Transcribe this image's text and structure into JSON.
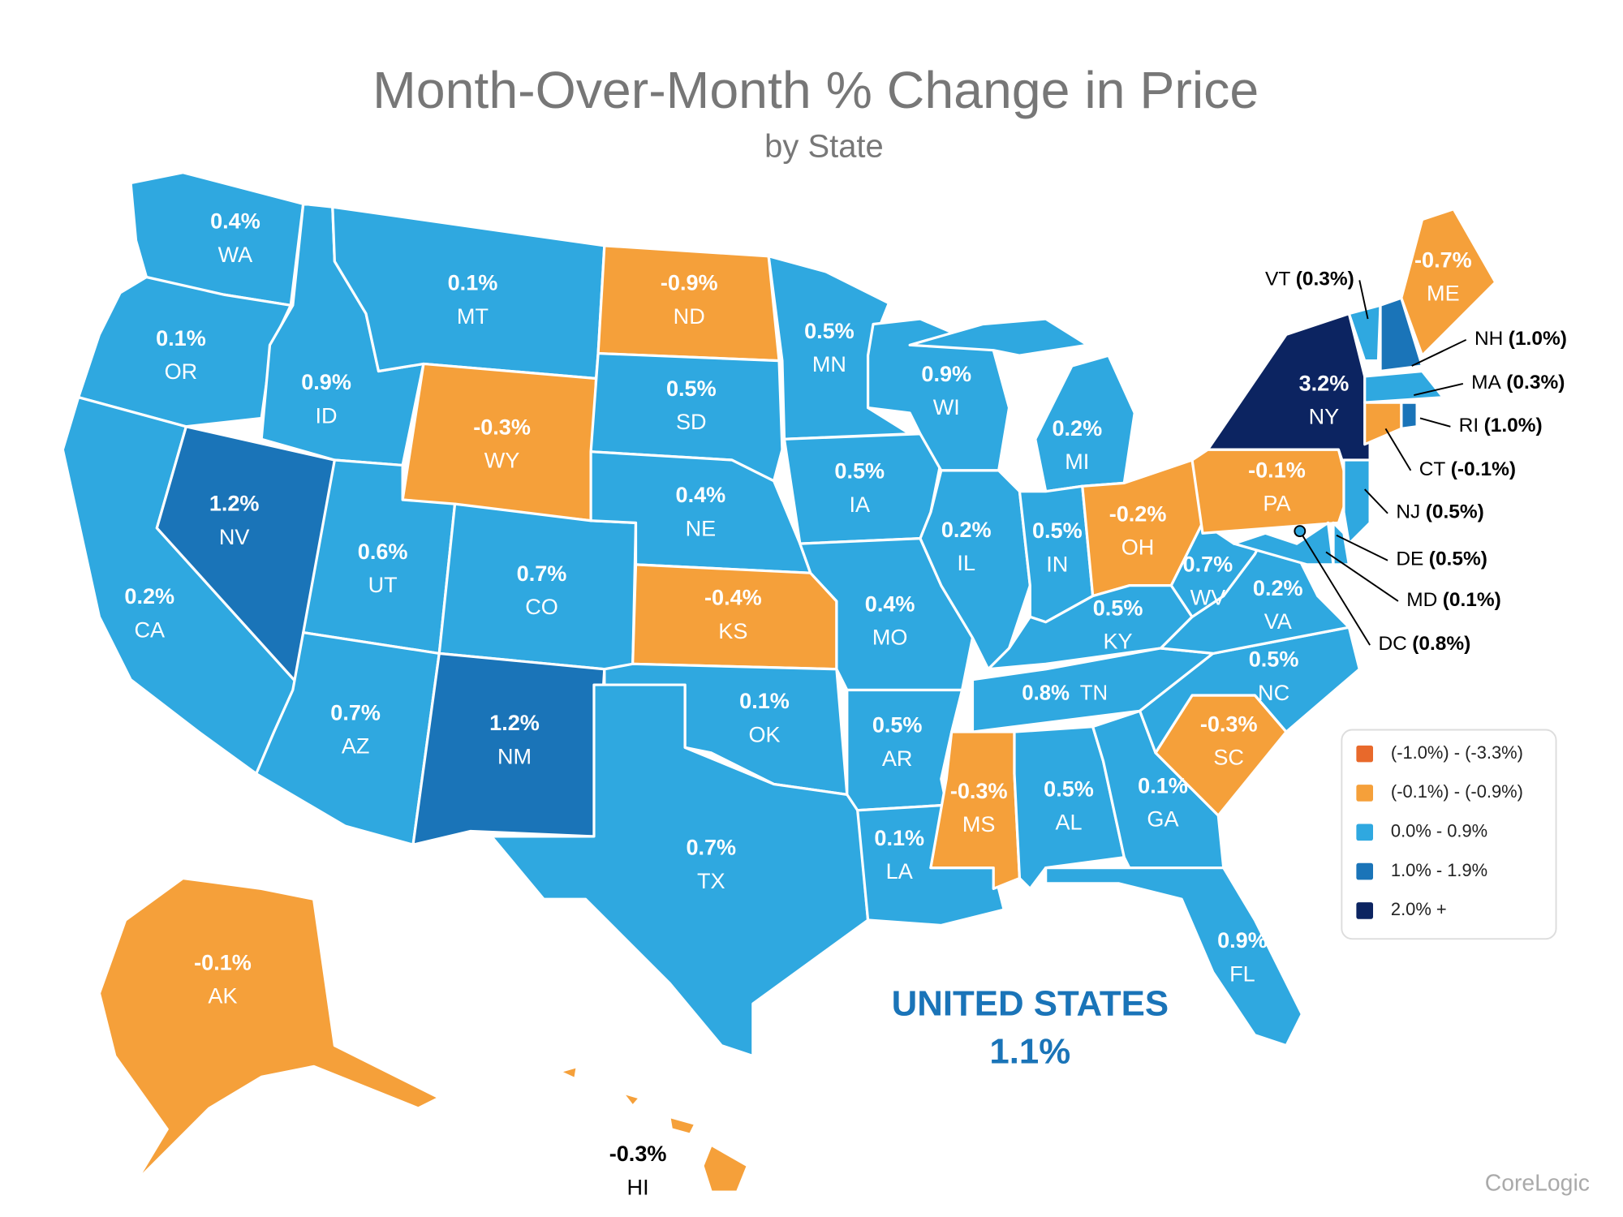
{
  "title": "Month-Over-Month % Change in Price",
  "subtitle": "by State",
  "legend": [
    {
      "label": "(-1.0%) - (-3.3%)",
      "color": "#e8692b"
    },
    {
      "label": "(-0.1%) - (-0.9%)",
      "color": "#f5a03a"
    },
    {
      "label": "0.0% - 0.9%",
      "color": "#2fa8e0"
    },
    {
      "label": "1.0% - 1.9%",
      "color": "#1a74b8"
    },
    {
      "label": "2.0% +",
      "color": "#0c2461"
    }
  ],
  "states": [
    {
      "abbr": "WA",
      "value": "0.4%",
      "color": "#2fa8e0"
    },
    {
      "abbr": "OR",
      "value": "0.1%",
      "color": "#2fa8e0"
    },
    {
      "abbr": "CA",
      "value": "0.2%",
      "color": "#2fa8e0"
    },
    {
      "abbr": "NV",
      "value": "1.2%",
      "color": "#1a74b8"
    },
    {
      "abbr": "ID",
      "value": "0.9%",
      "color": "#2fa8e0"
    },
    {
      "abbr": "MT",
      "value": "0.1%",
      "color": "#2fa8e0"
    },
    {
      "abbr": "WY",
      "value": "-0.3%",
      "color": "#f5a03a"
    },
    {
      "abbr": "UT",
      "value": "0.6%",
      "color": "#2fa8e0"
    },
    {
      "abbr": "CO",
      "value": "0.7%",
      "color": "#2fa8e0"
    },
    {
      "abbr": "AZ",
      "value": "0.7%",
      "color": "#2fa8e0"
    },
    {
      "abbr": "NM",
      "value": "1.2%",
      "color": "#1a74b8"
    },
    {
      "abbr": "ND",
      "value": "-0.9%",
      "color": "#f5a03a"
    },
    {
      "abbr": "SD",
      "value": "0.5%",
      "color": "#2fa8e0"
    },
    {
      "abbr": "NE",
      "value": "0.4%",
      "color": "#2fa8e0"
    },
    {
      "abbr": "KS",
      "value": "-0.4%",
      "color": "#f5a03a"
    },
    {
      "abbr": "OK",
      "value": "0.1%",
      "color": "#2fa8e0"
    },
    {
      "abbr": "TX",
      "value": "0.7%",
      "color": "#2fa8e0"
    },
    {
      "abbr": "MN",
      "value": "0.5%",
      "color": "#2fa8e0"
    },
    {
      "abbr": "IA",
      "value": "0.5%",
      "color": "#2fa8e0"
    },
    {
      "abbr": "MO",
      "value": "0.4%",
      "color": "#2fa8e0"
    },
    {
      "abbr": "AR",
      "value": "0.5%",
      "color": "#2fa8e0"
    },
    {
      "abbr": "LA",
      "value": "0.1%",
      "color": "#2fa8e0"
    },
    {
      "abbr": "WI",
      "value": "0.9%",
      "color": "#2fa8e0"
    },
    {
      "abbr": "IL",
      "value": "0.2%",
      "color": "#2fa8e0"
    },
    {
      "abbr": "MI",
      "value": "0.2%",
      "color": "#2fa8e0"
    },
    {
      "abbr": "IN",
      "value": "0.5%",
      "color": "#2fa8e0"
    },
    {
      "abbr": "OH",
      "value": "-0.2%",
      "color": "#f5a03a"
    },
    {
      "abbr": "KY",
      "value": "0.5%",
      "color": "#2fa8e0"
    },
    {
      "abbr": "TN",
      "value": "0.8%",
      "color": "#2fa8e0"
    },
    {
      "abbr": "MS",
      "value": "-0.3%",
      "color": "#f5a03a"
    },
    {
      "abbr": "AL",
      "value": "0.5%",
      "color": "#2fa8e0"
    },
    {
      "abbr": "GA",
      "value": "0.1%",
      "color": "#2fa8e0"
    },
    {
      "abbr": "FL",
      "value": "0.9%",
      "color": "#2fa8e0"
    },
    {
      "abbr": "SC",
      "value": "-0.3%",
      "color": "#f5a03a"
    },
    {
      "abbr": "NC",
      "value": "0.5%",
      "color": "#2fa8e0"
    },
    {
      "abbr": "VA",
      "value": "0.2%",
      "color": "#2fa8e0"
    },
    {
      "abbr": "WV",
      "value": "0.7%",
      "color": "#2fa8e0"
    },
    {
      "abbr": "PA",
      "value": "-0.1%",
      "color": "#f5a03a"
    },
    {
      "abbr": "NY",
      "value": "3.2%",
      "color": "#0c2461"
    },
    {
      "abbr": "ME",
      "value": "-0.7%",
      "color": "#f5a03a"
    },
    {
      "abbr": "AK",
      "value": "-0.1%",
      "color": "#f5a03a"
    },
    {
      "abbr": "HI",
      "value": "-0.3%",
      "color": "#f5a03a"
    },
    {
      "abbr": "VT",
      "value": "(0.3%)",
      "color": "#2fa8e0"
    },
    {
      "abbr": "NH",
      "value": "(1.0%)",
      "color": "#1a74b8"
    },
    {
      "abbr": "MA",
      "value": "(0.3%)",
      "color": "#2fa8e0"
    },
    {
      "abbr": "RI",
      "value": "(1.0%)",
      "color": "#1a74b8"
    },
    {
      "abbr": "CT",
      "value": "(-0.1%)",
      "color": "#f5a03a"
    },
    {
      "abbr": "NJ",
      "value": "(0.5%)",
      "color": "#2fa8e0"
    },
    {
      "abbr": "DE",
      "value": "(0.5%)",
      "color": "#2fa8e0"
    },
    {
      "abbr": "MD",
      "value": "(0.1%)",
      "color": "#2fa8e0"
    },
    {
      "abbr": "DC",
      "value": "(0.8%)",
      "color": "#2fa8e0"
    }
  ],
  "national": {
    "label": "UNITED STATES",
    "value": "1.1%"
  },
  "source": "CoreLogic"
}
